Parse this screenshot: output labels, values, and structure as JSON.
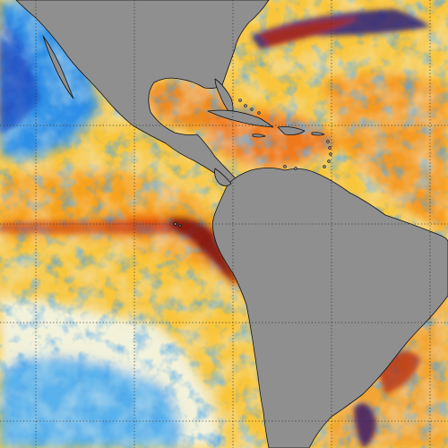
{
  "map": {
    "type": "sea-surface-temperature-anomaly",
    "land_color": "#8f8f8f",
    "coast_color": "#111111",
    "grid_color": "#333333",
    "grid": true,
    "palette": {
      "deep_blue": "#1a2fa8",
      "blue": "#2f8fe6",
      "light_blue": "#8fd3f2",
      "pale": "#f2f4f0",
      "yellow": "#f8e44a",
      "orange": "#f8a51f",
      "red_orange": "#ea5a17",
      "dark_red": "#7a1309"
    }
  }
}
